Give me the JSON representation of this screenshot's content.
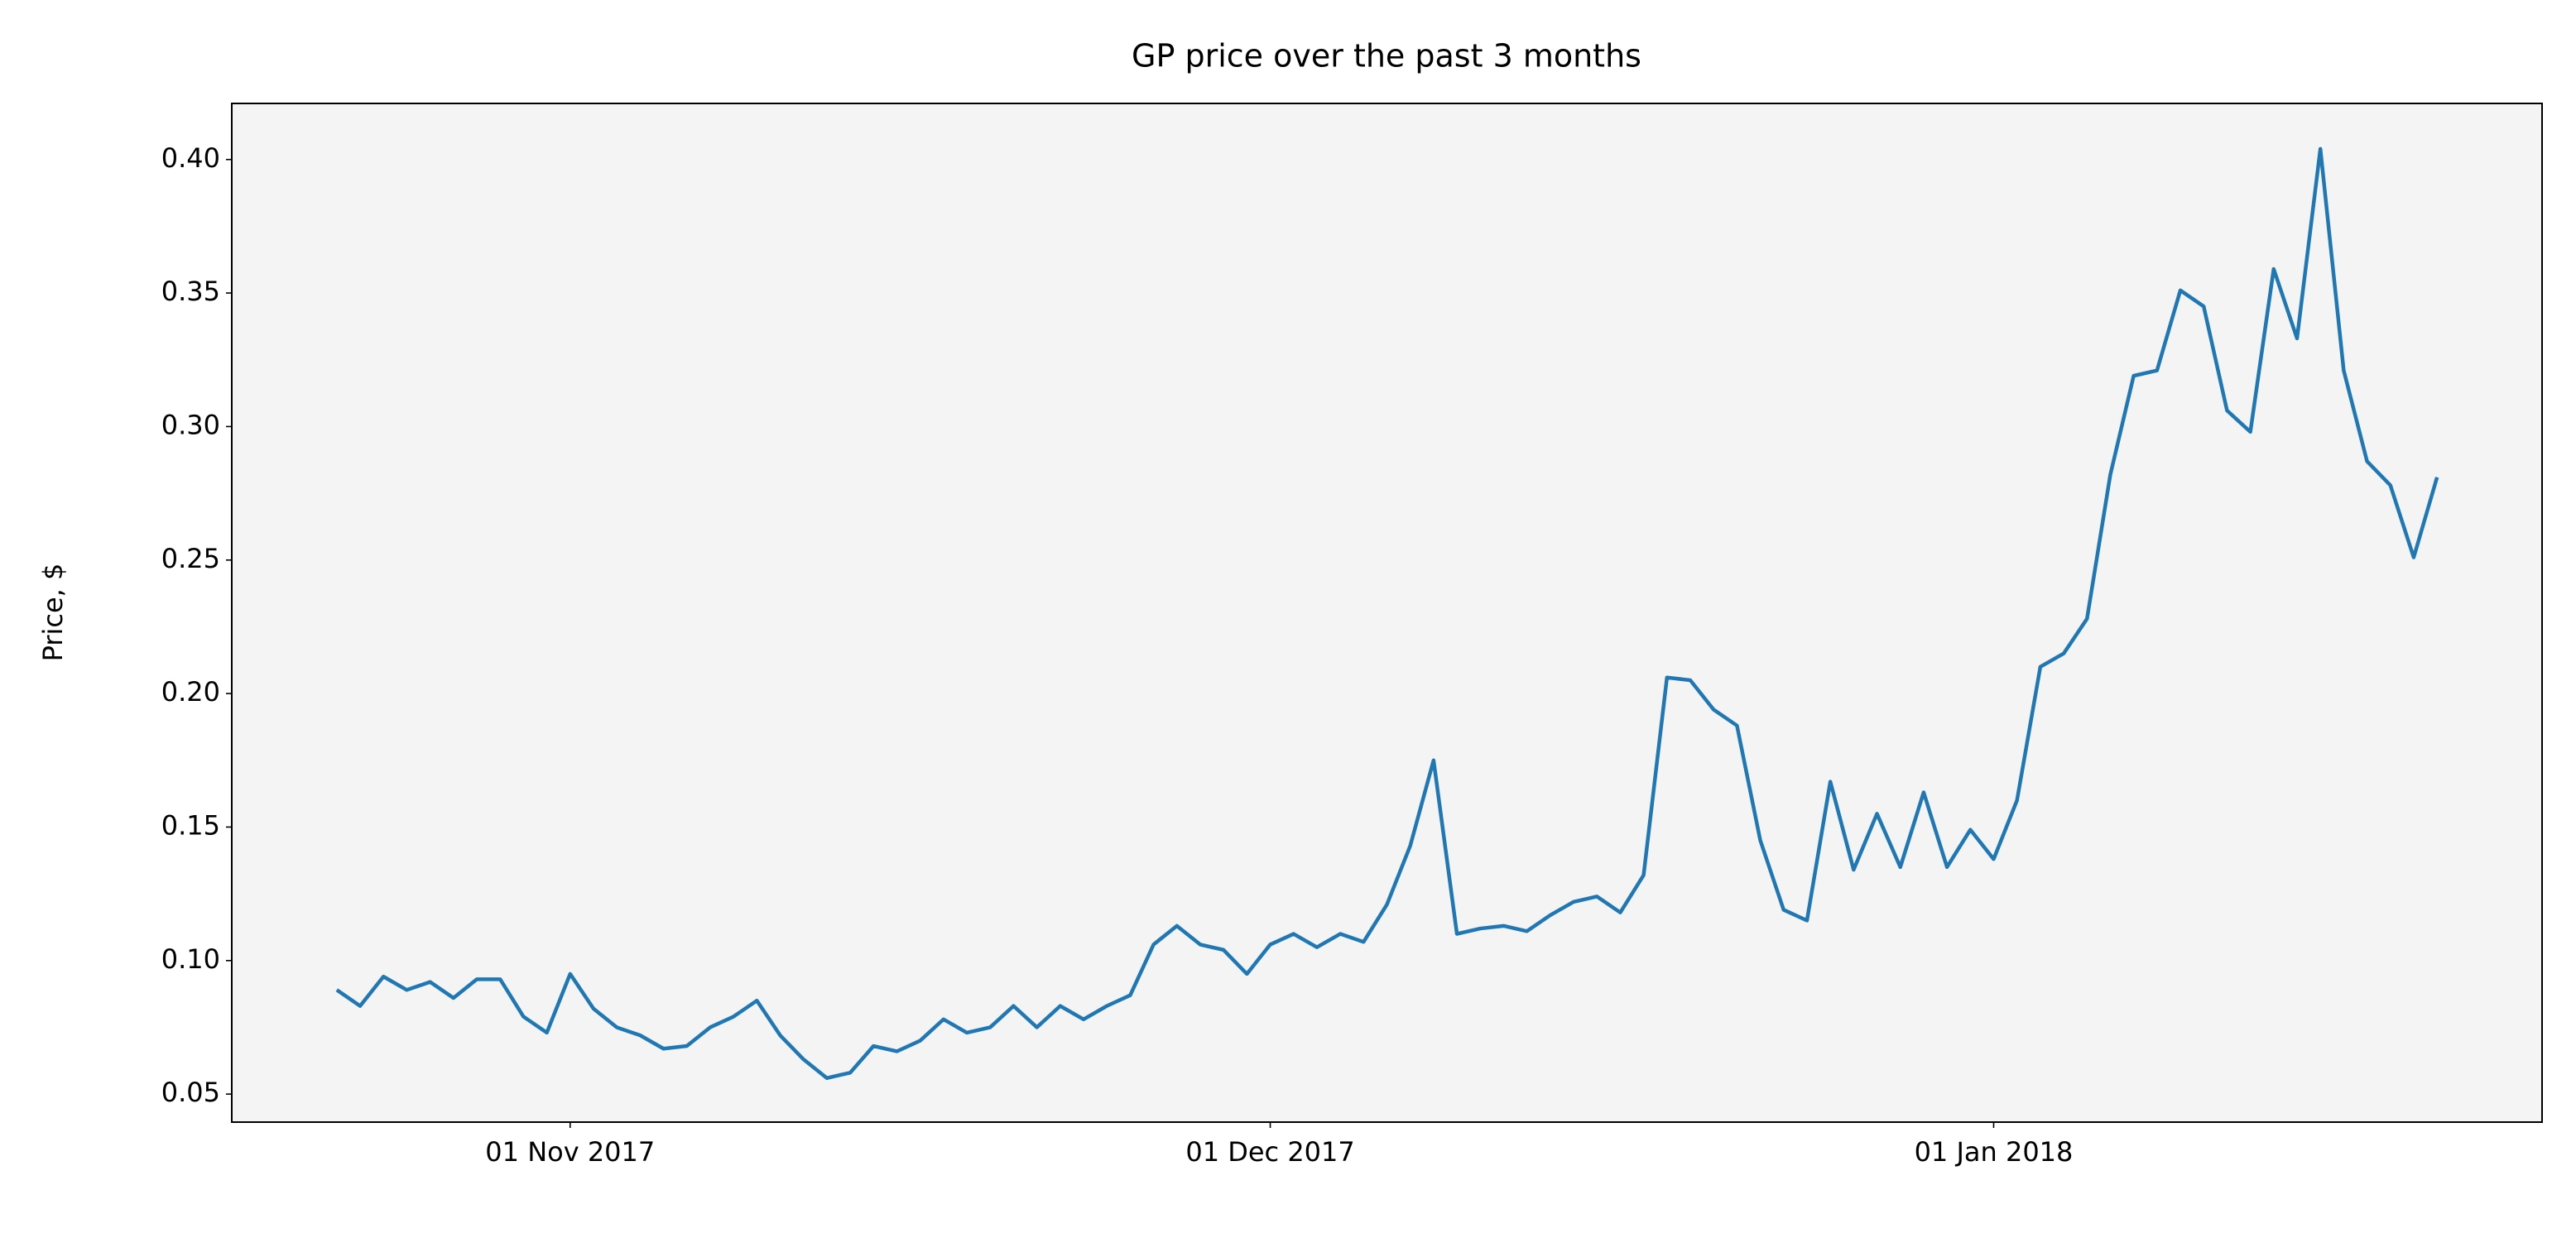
{
  "chart_data": {
    "type": "line",
    "title": "GP price over the past 3 months",
    "y_label": "Price, $",
    "color": "#1f77b4",
    "background": "#f4f4f4",
    "x": [
      "2017-10-22",
      "2017-10-23",
      "2017-10-24",
      "2017-10-25",
      "2017-10-26",
      "2017-10-27",
      "2017-10-28",
      "2017-10-29",
      "2017-10-30",
      "2017-10-31",
      "2017-11-01",
      "2017-11-02",
      "2017-11-03",
      "2017-11-04",
      "2017-11-05",
      "2017-11-06",
      "2017-11-07",
      "2017-11-08",
      "2017-11-09",
      "2017-11-10",
      "2017-11-11",
      "2017-11-12",
      "2017-11-13",
      "2017-11-14",
      "2017-11-15",
      "2017-11-16",
      "2017-11-17",
      "2017-11-18",
      "2017-11-19",
      "2017-11-20",
      "2017-11-21",
      "2017-11-22",
      "2017-11-23",
      "2017-11-24",
      "2017-11-25",
      "2017-11-26",
      "2017-11-27",
      "2017-11-28",
      "2017-11-29",
      "2017-11-30",
      "2017-12-01",
      "2017-12-02",
      "2017-12-03",
      "2017-12-04",
      "2017-12-05",
      "2017-12-06",
      "2017-12-07",
      "2017-12-08",
      "2017-12-09",
      "2017-12-10",
      "2017-12-11",
      "2017-12-12",
      "2017-12-13",
      "2017-12-14",
      "2017-12-15",
      "2017-12-16",
      "2017-12-17",
      "2017-12-18",
      "2017-12-19",
      "2017-12-20",
      "2017-12-21",
      "2017-12-22",
      "2017-12-23",
      "2017-12-24",
      "2017-12-25",
      "2017-12-26",
      "2017-12-27",
      "2017-12-28",
      "2017-12-29",
      "2017-12-30",
      "2017-12-31",
      "2018-01-01",
      "2018-01-02",
      "2018-01-03",
      "2018-01-04",
      "2018-01-05",
      "2018-01-06",
      "2018-01-07",
      "2018-01-08",
      "2018-01-09",
      "2018-01-10",
      "2018-01-11",
      "2018-01-12",
      "2018-01-13",
      "2018-01-14",
      "2018-01-15",
      "2018-01-16",
      "2018-01-17",
      "2018-01-18",
      "2018-01-19",
      "2018-01-20"
    ],
    "values": [
      0.089,
      0.083,
      0.094,
      0.089,
      0.092,
      0.086,
      0.093,
      0.093,
      0.079,
      0.073,
      0.095,
      0.082,
      0.075,
      0.072,
      0.067,
      0.068,
      0.075,
      0.079,
      0.085,
      0.072,
      0.063,
      0.056,
      0.058,
      0.068,
      0.066,
      0.07,
      0.078,
      0.073,
      0.075,
      0.083,
      0.075,
      0.083,
      0.078,
      0.083,
      0.087,
      0.106,
      0.113,
      0.106,
      0.104,
      0.095,
      0.106,
      0.11,
      0.105,
      0.11,
      0.107,
      0.121,
      0.143,
      0.175,
      0.11,
      0.112,
      0.113,
      0.111,
      0.117,
      0.122,
      0.124,
      0.118,
      0.132,
      0.206,
      0.205,
      0.194,
      0.188,
      0.145,
      0.119,
      0.115,
      0.167,
      0.134,
      0.155,
      0.135,
      0.163,
      0.135,
      0.149,
      0.138,
      0.16,
      0.21,
      0.215,
      0.228,
      0.282,
      0.319,
      0.321,
      0.351,
      0.345,
      0.306,
      0.298,
      0.359,
      0.333,
      0.404,
      0.321,
      0.287,
      0.278,
      0.251,
      0.281
    ],
    "xlim": [
      "2017-10-17T12:00:00Z",
      "2018-01-24T12:00:00Z"
    ],
    "xticks": [
      {
        "value": "2017-11-01",
        "label": "01 Nov 2017"
      },
      {
        "value": "2017-12-01",
        "label": "01 Dec 2017"
      },
      {
        "value": "2018-01-01",
        "label": "01 Jan 2018"
      }
    ],
    "ylim": [
      0.0395,
      0.421
    ],
    "yticks": [
      0.05,
      {
        "value": 0.1,
        "label": "0.10"
      },
      0.15,
      {
        "value": 0.2,
        "label": "0.20"
      },
      0.25,
      {
        "value": 0.3,
        "label": "0.30"
      },
      0.35,
      {
        "value": 0.4,
        "label": "0.40"
      }
    ],
    "grid": false
  }
}
